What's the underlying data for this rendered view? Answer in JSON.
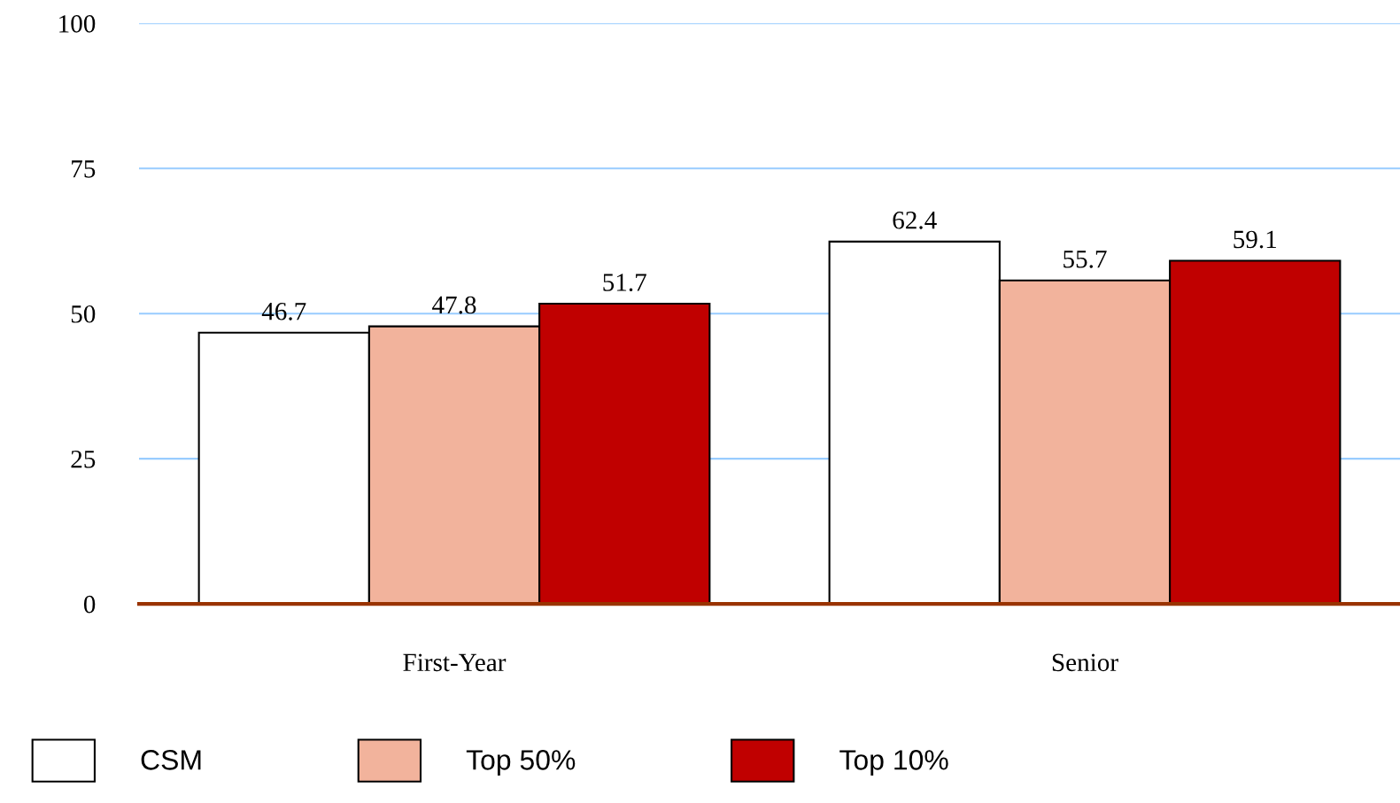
{
  "chart_data": {
    "type": "bar",
    "categories": [
      "First-Year",
      "Senior"
    ],
    "series": [
      {
        "name": "CSM",
        "color": "#ffffff",
        "values": [
          46.7,
          62.4
        ]
      },
      {
        "name": "Top 50%",
        "color": "#f2b39c",
        "values": [
          47.8,
          55.7
        ]
      },
      {
        "name": "Top 10%",
        "color": "#c00000",
        "values": [
          51.7,
          59.1
        ]
      }
    ],
    "ylim": [
      0,
      100
    ],
    "yticks": [
      0,
      25,
      50,
      75,
      100
    ],
    "grid": "y",
    "legend": "bottom",
    "data_labels": true
  }
}
